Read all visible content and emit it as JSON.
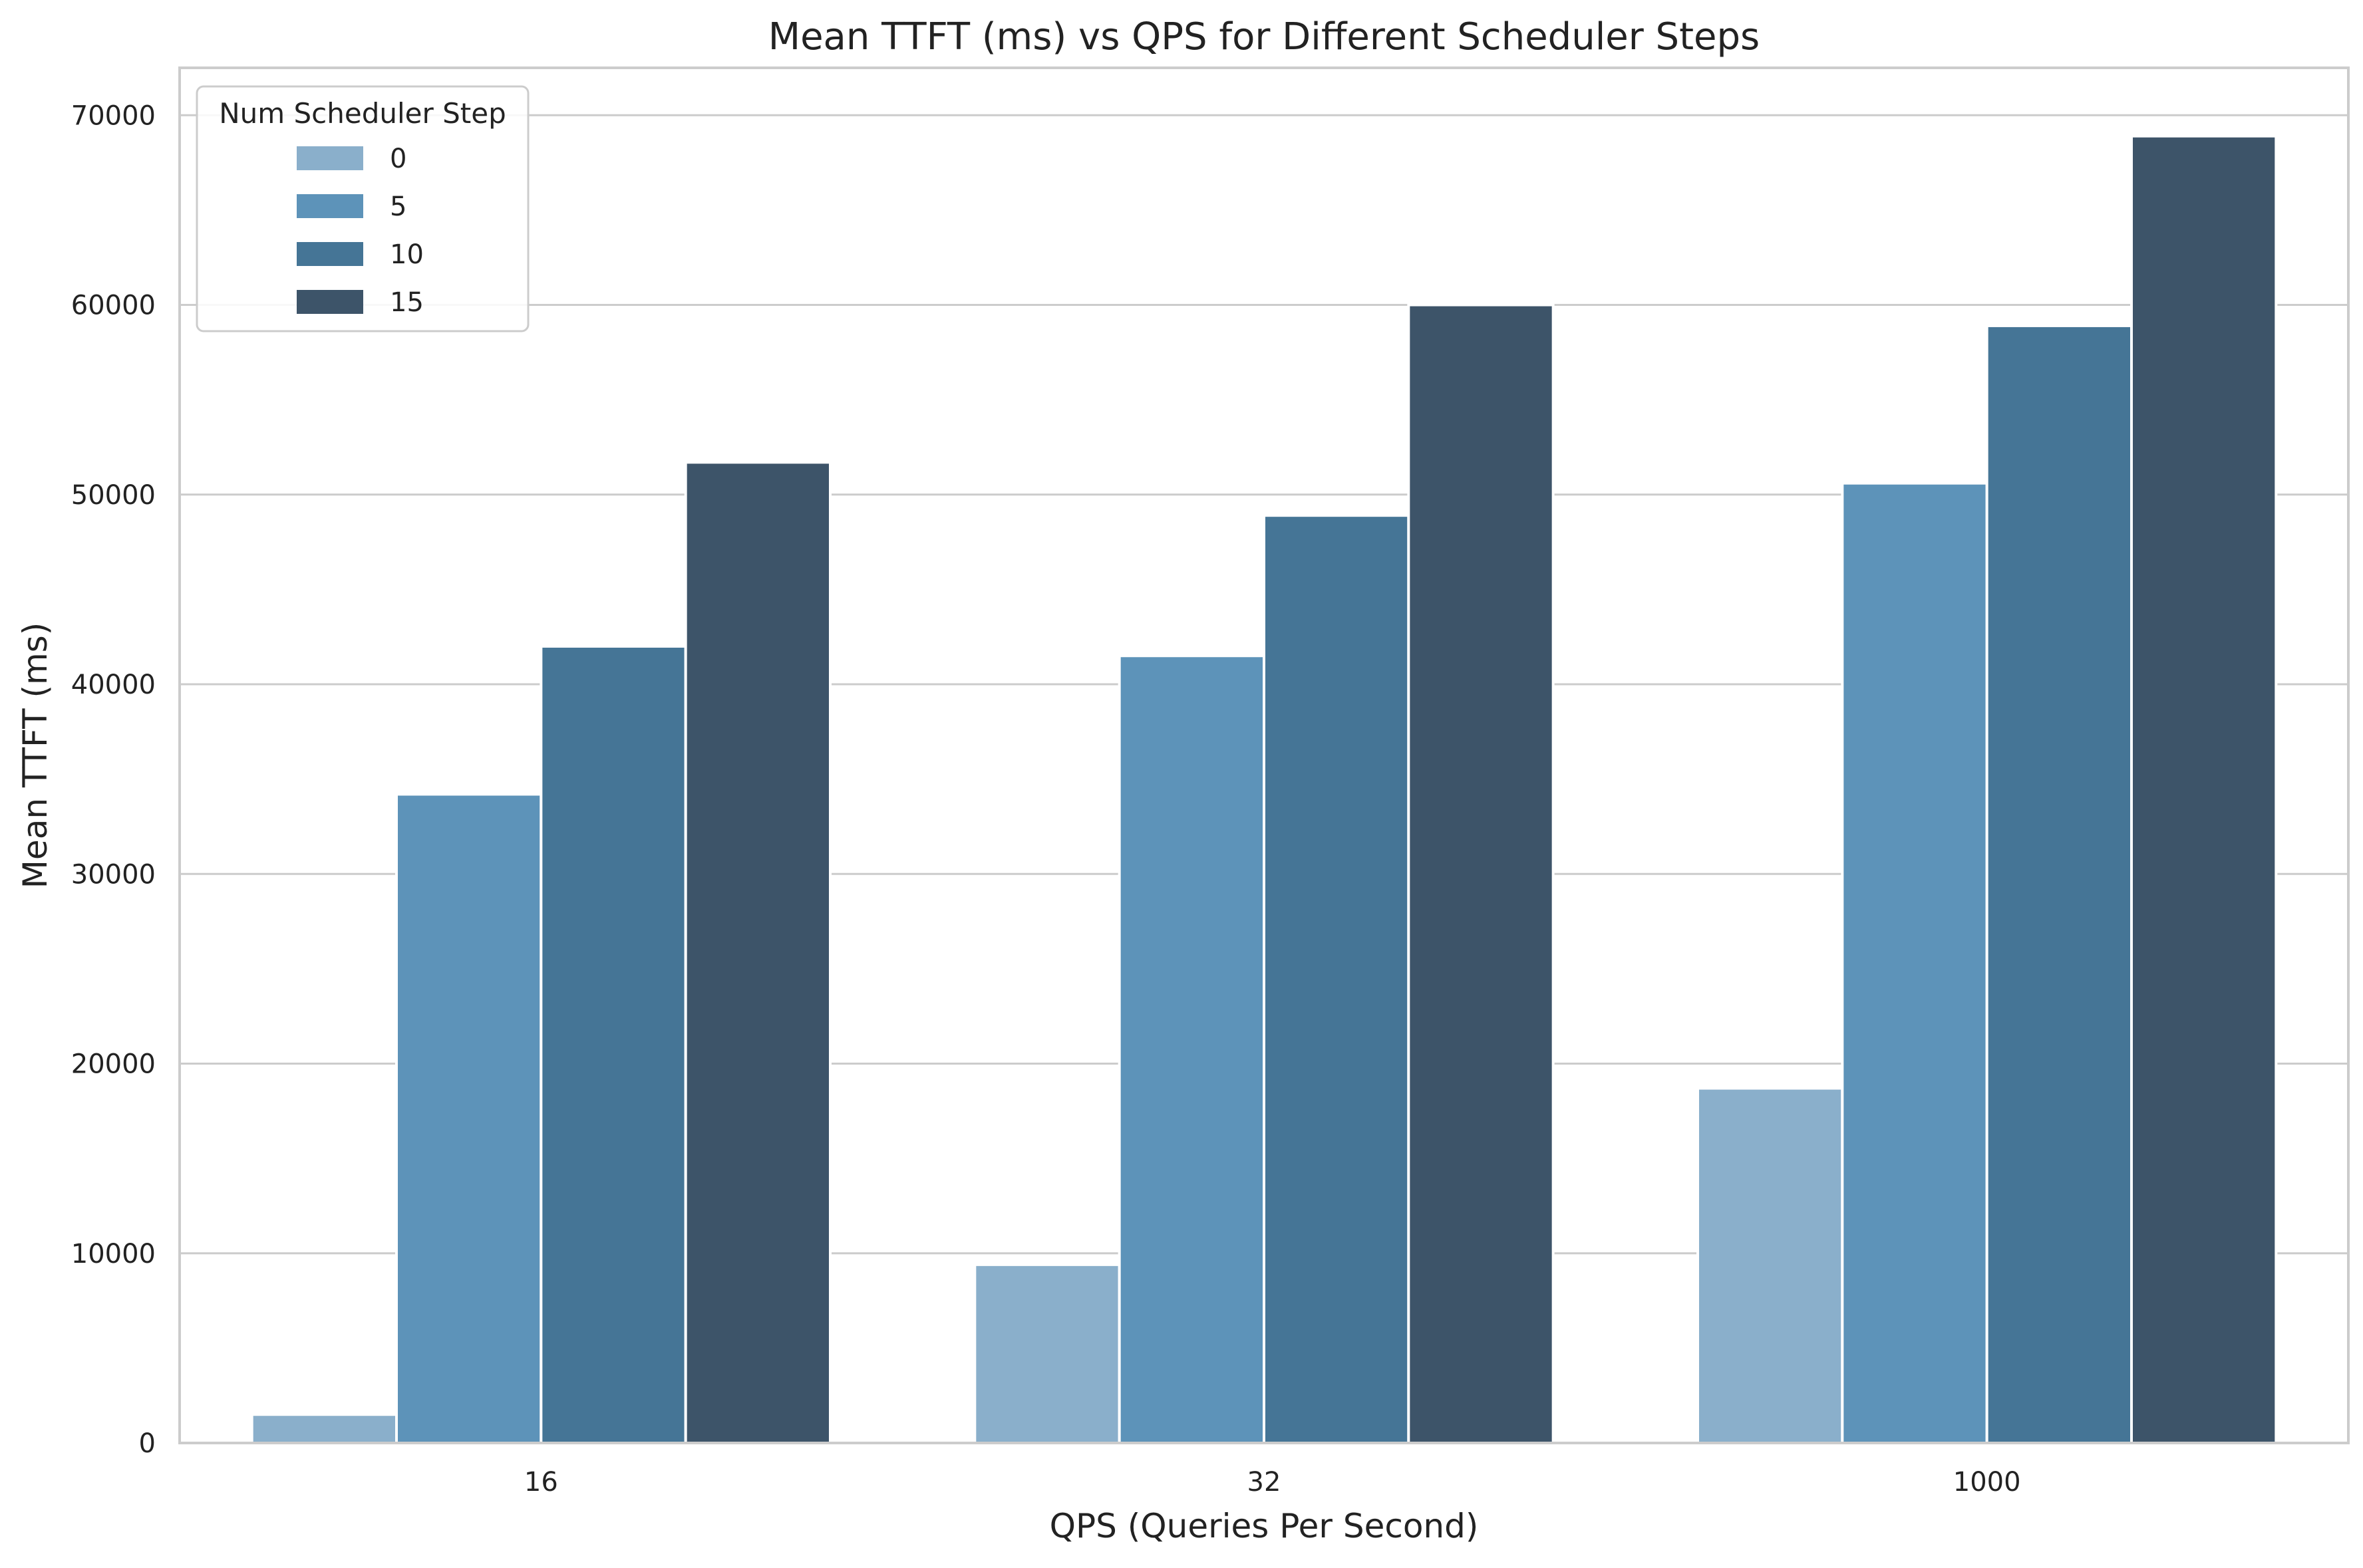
{
  "chart_data": {
    "type": "bar",
    "title": "Mean TTFT (ms) vs QPS for Different Scheduler Steps",
    "xlabel": "QPS (Queries Per Second)",
    "ylabel": "Mean TTFT (ms)",
    "categories": [
      "16",
      "32",
      "1000"
    ],
    "ylim": [
      0,
      72500
    ],
    "yticks": [
      0,
      10000,
      20000,
      30000,
      40000,
      50000,
      60000,
      70000
    ],
    "grid": true,
    "legend": {
      "title": "Num Scheduler Step",
      "placement": "top-left"
    },
    "series": [
      {
        "name": "0",
        "color": "#8aafcb",
        "values": [
          1500,
          9400,
          18700
        ]
      },
      {
        "name": "5",
        "color": "#5d93b9",
        "values": [
          34200,
          41500,
          50600
        ]
      },
      {
        "name": "10",
        "color": "#457596",
        "values": [
          42000,
          48900,
          58900
        ]
      },
      {
        "name": "15",
        "color": "#3d5469",
        "values": [
          51700,
          60000,
          68900
        ]
      }
    ]
  }
}
